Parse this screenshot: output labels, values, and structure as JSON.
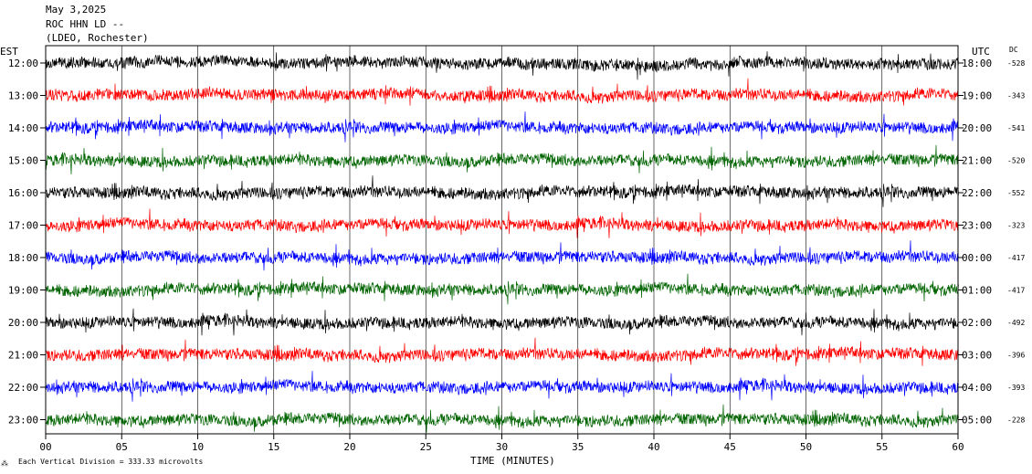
{
  "header": {
    "date": "May 3,2025",
    "station": "ROC HHN LD --",
    "network": "(LDEO, Rochester)"
  },
  "chart_data": {
    "type": "line",
    "title": "",
    "xlabel": "TIME (MINUTES)",
    "ylabel_left": "EST",
    "ylabel_right": "UTC",
    "dc_label": "DC",
    "xlim": [
      0,
      60
    ],
    "x_ticks": [
      "00",
      "05",
      "10",
      "15",
      "20",
      "25",
      "30",
      "35",
      "40",
      "45",
      "50",
      "55",
      "60"
    ],
    "x_tick_values": [
      0,
      5,
      10,
      15,
      20,
      25,
      30,
      35,
      40,
      45,
      50,
      55,
      60
    ],
    "grid": "vertical",
    "trace_colors": [
      "#000000",
      "#ff0000",
      "#0000ff",
      "#006400"
    ],
    "traces": [
      {
        "est": "12:00",
        "utc": "18:00",
        "dc": "-528"
      },
      {
        "est": "13:00",
        "utc": "19:00",
        "dc": "-343"
      },
      {
        "est": "14:00",
        "utc": "20:00",
        "dc": "-541"
      },
      {
        "est": "15:00",
        "utc": "21:00",
        "dc": "-520"
      },
      {
        "est": "16:00",
        "utc": "22:00",
        "dc": "-552"
      },
      {
        "est": "17:00",
        "utc": "23:00",
        "dc": "-323"
      },
      {
        "est": "18:00",
        "utc": "00:00",
        "dc": "-417"
      },
      {
        "est": "19:00",
        "utc": "01:00",
        "dc": "-417"
      },
      {
        "est": "20:00",
        "utc": "02:00",
        "dc": "-492"
      },
      {
        "est": "21:00",
        "utc": "03:00",
        "dc": "-396"
      },
      {
        "est": "22:00",
        "utc": "04:00",
        "dc": "-393"
      },
      {
        "est": "23:00",
        "utc": "05:00",
        "dc": "-228"
      }
    ],
    "footer_note": "Each Vertical Division =  333.33 microvolts"
  }
}
